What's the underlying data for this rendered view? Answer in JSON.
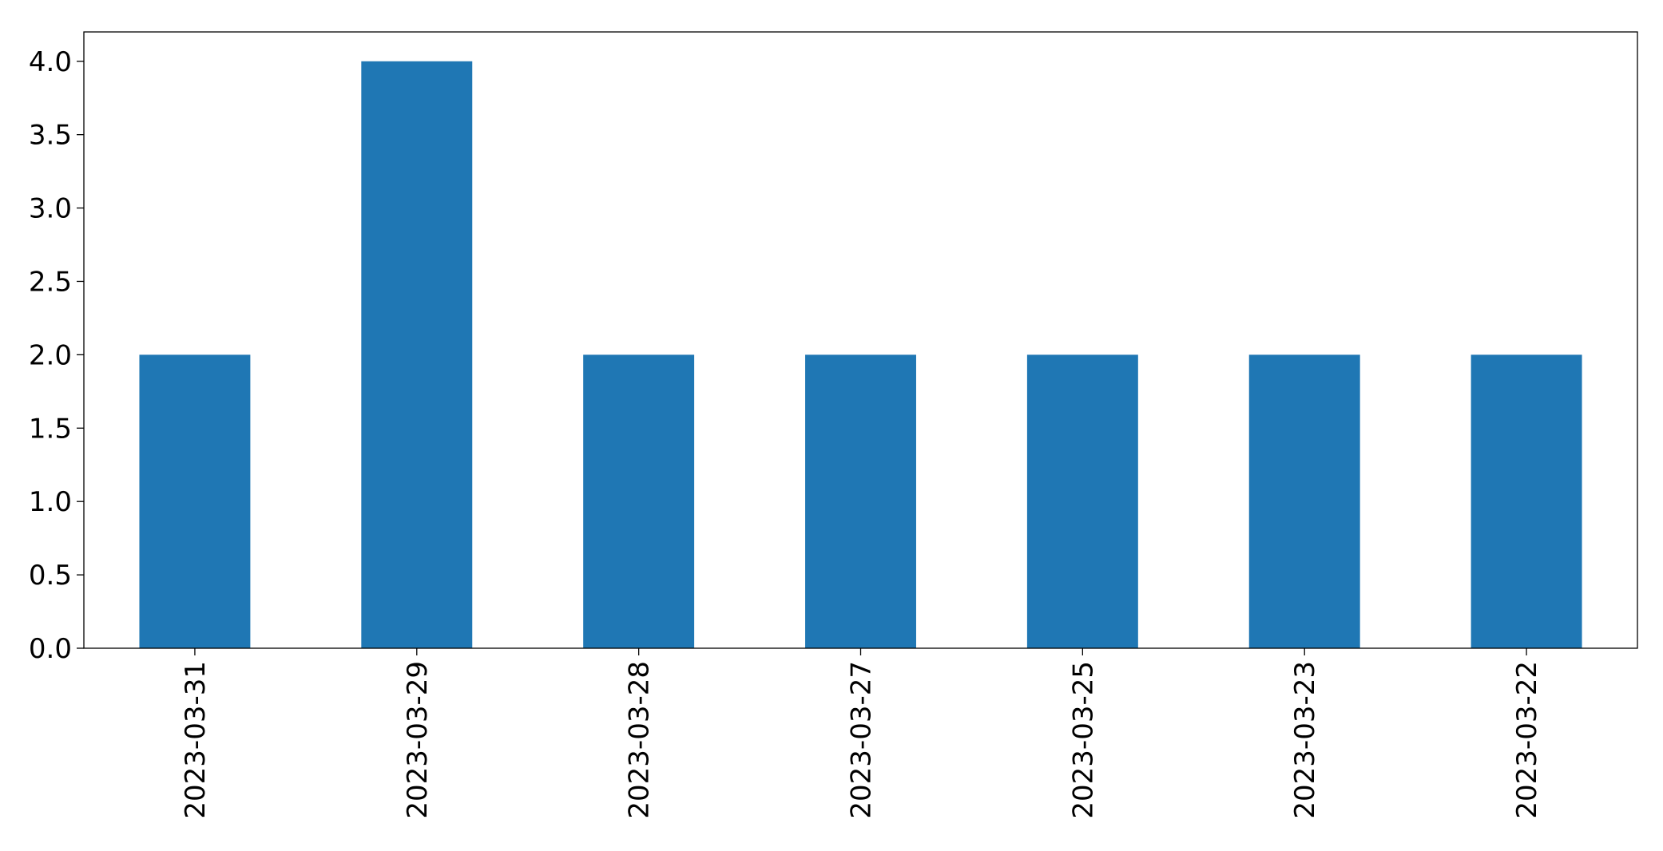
{
  "chart_data": {
    "type": "bar",
    "categories": [
      "2023-03-31",
      "2023-03-29",
      "2023-03-28",
      "2023-03-27",
      "2023-03-25",
      "2023-03-23",
      "2023-03-22"
    ],
    "values": [
      2,
      4,
      2,
      2,
      2,
      2,
      2
    ],
    "title": "",
    "xlabel": "",
    "ylabel": "",
    "ylim": [
      0,
      4.2
    ],
    "yticks": [
      "0.0",
      "0.5",
      "1.0",
      "1.5",
      "2.0",
      "2.5",
      "3.0",
      "3.5",
      "4.0"
    ],
    "bar_color": "#1f77b4",
    "grid": false,
    "legend": false,
    "x_tick_rotation": "vertical"
  }
}
